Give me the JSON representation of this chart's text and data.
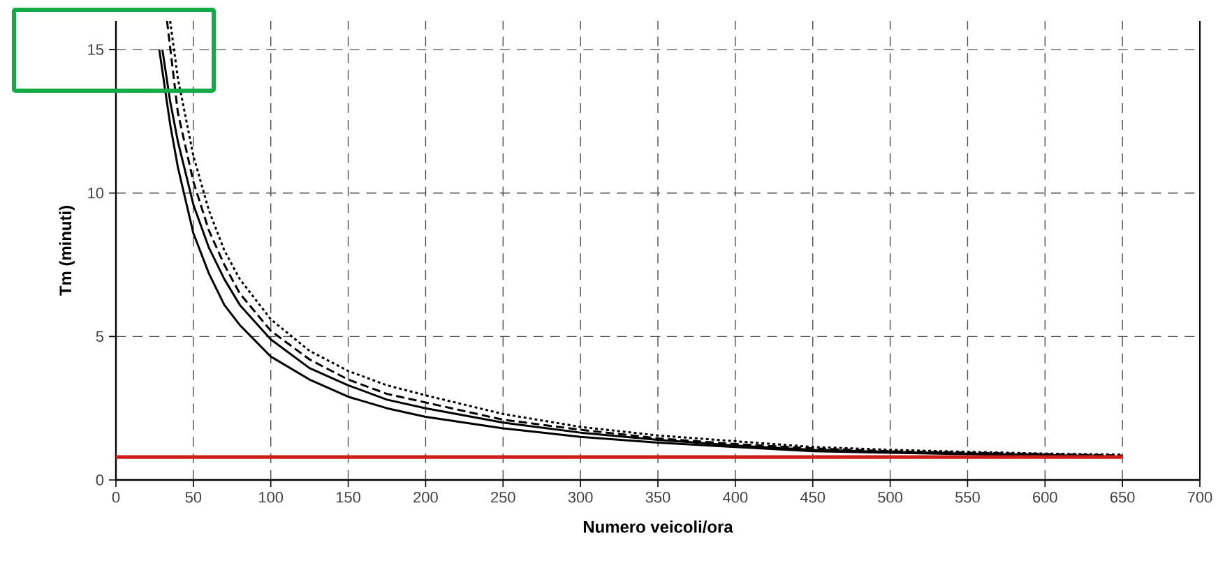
{
  "chart_data": {
    "type": "line",
    "xlabel": "Numero veicoli/ora",
    "ylabel": "Tm (minuti)",
    "xlim": [
      0,
      700
    ],
    "ylim": [
      0,
      16
    ],
    "xticks": [
      0,
      50,
      100,
      150,
      200,
      250,
      300,
      350,
      400,
      450,
      500,
      550,
      600,
      650,
      700
    ],
    "yticks": [
      0,
      5,
      10,
      15
    ],
    "grid": true,
    "marker": "none",
    "series": [
      {
        "color": "#000000",
        "line_style": "solid",
        "x": [
          28,
          35,
          40,
          50,
          60,
          70,
          80,
          100,
          125,
          150,
          175,
          200,
          250,
          300,
          350,
          400,
          450,
          500,
          550,
          600,
          640
        ],
        "values": [
          15.0,
          12.4,
          10.9,
          8.6,
          7.2,
          6.1,
          5.4,
          4.3,
          3.5,
          2.9,
          2.5,
          2.2,
          1.8,
          1.5,
          1.3,
          1.15,
          1.0,
          0.95,
          0.9,
          0.85,
          0.8
        ]
      },
      {
        "color": "#000000",
        "line_style": "solid",
        "x": [
          30,
          35,
          40,
          50,
          60,
          70,
          80,
          100,
          125,
          150,
          175,
          200,
          250,
          300,
          350,
          400,
          450,
          500,
          550,
          600,
          640
        ],
        "values": [
          15.0,
          13.2,
          11.8,
          9.6,
          8.1,
          7.0,
          6.1,
          4.9,
          3.9,
          3.3,
          2.8,
          2.5,
          2.0,
          1.65,
          1.4,
          1.2,
          1.05,
          0.98,
          0.92,
          0.87,
          0.82
        ]
      },
      {
        "color": "#000000",
        "line_style": "dashed",
        "x": [
          33,
          40,
          50,
          60,
          70,
          80,
          100,
          125,
          150,
          175,
          200,
          250,
          300,
          350,
          400,
          450,
          500,
          550,
          600,
          650
        ],
        "values": [
          16.0,
          12.8,
          10.4,
          8.7,
          7.5,
          6.5,
          5.2,
          4.2,
          3.5,
          3.0,
          2.7,
          2.1,
          1.75,
          1.45,
          1.25,
          1.1,
          1.0,
          0.95,
          0.9,
          0.85
        ]
      },
      {
        "color": "#000000",
        "line_style": "dotted",
        "x": [
          35,
          40,
          50,
          60,
          70,
          80,
          100,
          125,
          150,
          175,
          200,
          250,
          300,
          350,
          400,
          450,
          500,
          550,
          600,
          650
        ],
        "values": [
          16.0,
          14.0,
          11.3,
          9.4,
          8.0,
          7.0,
          5.6,
          4.5,
          3.8,
          3.3,
          2.95,
          2.3,
          1.85,
          1.55,
          1.35,
          1.15,
          1.05,
          0.98,
          0.92,
          0.88
        ]
      },
      {
        "color": "#d01c1c",
        "line_style": "solid",
        "x": [
          0,
          650
        ],
        "values": [
          0.8,
          0.8
        ]
      }
    ]
  }
}
